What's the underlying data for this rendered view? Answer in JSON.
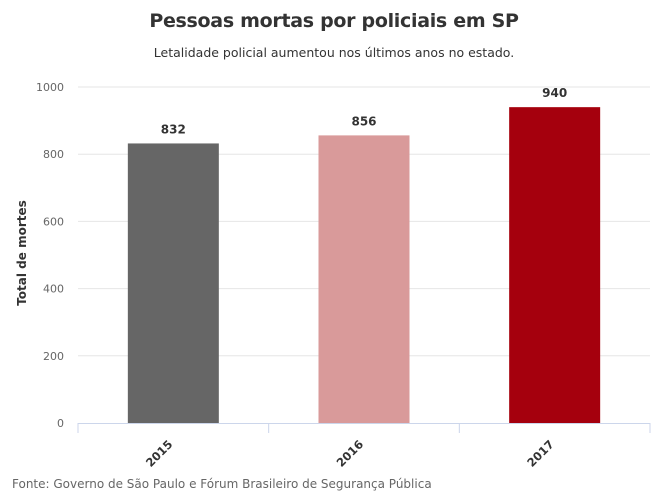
{
  "chart_data": {
    "type": "bar",
    "title": "Pessoas mortas por policiais em SP",
    "subtitle": "Letalidade policial aumentou nos últimos anos no estado.",
    "xlabel": "",
    "ylabel": "Total de mortes",
    "categories": [
      "2015",
      "2016",
      "2017"
    ],
    "values": [
      832,
      856,
      940
    ],
    "colors": [
      "#666666",
      "#d99a9a",
      "#a5000d"
    ],
    "ylim": [
      0,
      1000
    ],
    "yticks": [
      0,
      200,
      400,
      600,
      800,
      1000
    ],
    "grid": true,
    "legend": "none",
    "data_labels": true,
    "credits": "Fonte: Governo de São Paulo e Fórum Brasileiro de Segurança Pública"
  }
}
